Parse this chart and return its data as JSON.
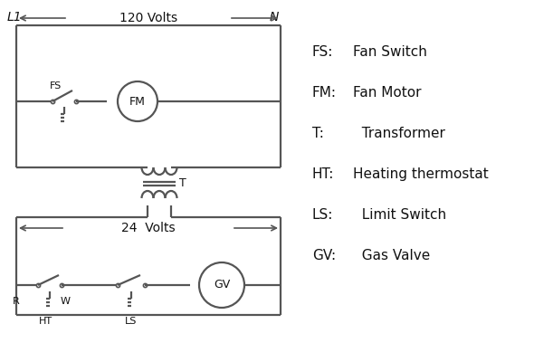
{
  "bg_color": "#ffffff",
  "line_color": "#555555",
  "text_color": "#111111",
  "L1_label": "L1",
  "N_label": "N",
  "volts120_label": "120 Volts",
  "volts24_label": "24  Volts",
  "legend_items": [
    [
      "FS:",
      "Fan Switch"
    ],
    [
      "FM:",
      "Fan Motor"
    ],
    [
      "T:",
      "  Transformer"
    ],
    [
      "HT:",
      "Heating thermostat"
    ],
    [
      "LS:",
      "  Limit Switch"
    ],
    [
      "GV:",
      "  Gas Valve"
    ]
  ]
}
